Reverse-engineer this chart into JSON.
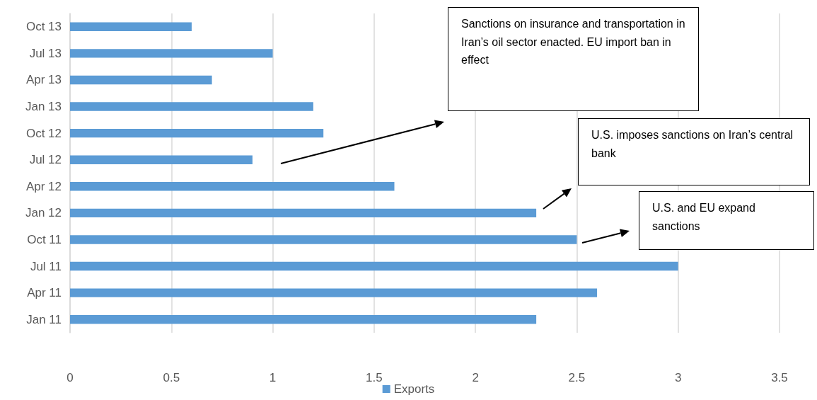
{
  "chart_data": {
    "type": "bar",
    "orientation": "horizontal",
    "categories": [
      "Oct 13",
      "Jul 13",
      "Apr 13",
      "Jan 13",
      "Oct 12",
      "Jul 12",
      "Apr 12",
      "Jan 12",
      "Oct 11",
      "Jul 11",
      "Apr 11",
      "Jan 11"
    ],
    "series": [
      {
        "name": "Exports",
        "color": "#5b9bd5",
        "values": [
          0.6,
          1.0,
          0.7,
          1.2,
          1.25,
          0.9,
          1.6,
          2.3,
          2.5,
          3.0,
          2.6,
          2.3
        ]
      }
    ],
    "xlim": [
      0,
      3.5
    ],
    "xticks": [
      0,
      0.5,
      1,
      1.5,
      2,
      2.5,
      3,
      3.5
    ],
    "grid": "x",
    "legend": "bottom",
    "annotations": [
      "Sanctions on insurance and transportation in Iran’s oil sector enacted. EU import ban in effect",
      "U.S. imposes sanctions on Iran’s central bank",
      "U.S. and EU expand sanctions"
    ]
  }
}
